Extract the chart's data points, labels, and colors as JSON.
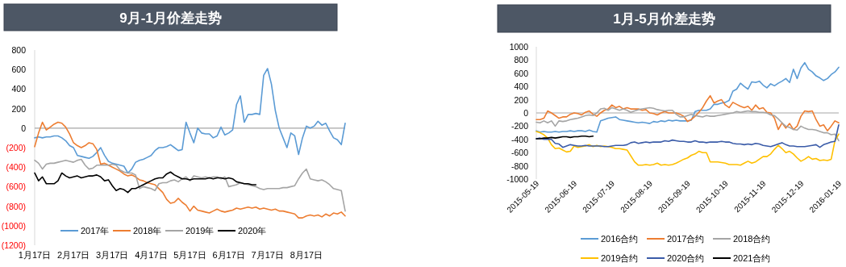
{
  "chart_data": [
    {
      "type": "line",
      "title": "9月-1月价差走势",
      "categories": [
        "1月17日",
        null,
        null,
        null,
        null,
        null,
        null,
        null,
        null,
        null,
        "2月17日",
        null,
        null,
        null,
        null,
        null,
        null,
        null,
        null,
        null,
        "3月17日",
        null,
        null,
        null,
        null,
        null,
        null,
        null,
        null,
        null,
        "4月17日",
        null,
        null,
        null,
        null,
        null,
        null,
        null,
        null,
        null,
        "5月17日",
        null,
        null,
        null,
        null,
        null,
        null,
        null,
        null,
        null,
        "6月17日",
        null,
        null,
        null,
        null,
        null,
        null,
        null,
        null,
        null,
        "7月17日",
        null,
        null,
        null,
        null,
        null,
        null,
        null,
        null,
        null,
        "8月17日",
        null,
        null,
        null,
        null,
        null,
        null,
        null,
        null,
        null,
        null
      ],
      "ylim": [
        -1200,
        800
      ],
      "yticks": [
        {
          "value": -1200,
          "label": "(1200)"
        },
        {
          "value": -1000,
          "label": "(1000)"
        },
        {
          "value": -800,
          "label": "(800)"
        },
        {
          "value": -600,
          "label": "(600)"
        },
        {
          "value": -400,
          "label": "(400)"
        },
        {
          "value": -200,
          "label": "(200)"
        },
        0,
        200,
        400,
        600,
        800
      ],
      "ref_lines": [
        {
          "axis": "y",
          "value": 0,
          "color": "#a6a6a6"
        }
      ],
      "legend": "bottom",
      "series": [
        {
          "name": "2017年",
          "color": "#5b9bd5",
          "values": [
            -100,
            -90,
            -100,
            -90,
            -90,
            -80,
            -80,
            -100,
            -130,
            -180,
            -200,
            -280,
            -290,
            -300,
            -310,
            -290,
            -250,
            -200,
            -280,
            -340,
            -360,
            -370,
            -380,
            -390,
            -460,
            -420,
            -350,
            -330,
            -320,
            -300,
            -280,
            -230,
            -200,
            -200,
            -190,
            -170,
            -200,
            -230,
            -220,
            60,
            -50,
            -150,
            0,
            -50,
            -60,
            -60,
            -100,
            -80,
            10,
            -70,
            -50,
            -20,
            240,
            330,
            60,
            140,
            140,
            150,
            140,
            540,
            610,
            450,
            180,
            0,
            -100,
            -200,
            -50,
            -80,
            -270,
            -100,
            20,
            0,
            20,
            70,
            30,
            50,
            -30,
            -100,
            -120,
            -170,
            50
          ]
        },
        {
          "name": "2018年",
          "color": "#ed7d31",
          "values": [
            -190,
            -50,
            60,
            -20,
            10,
            40,
            60,
            50,
            10,
            -60,
            -150,
            -180,
            -200,
            -180,
            -150,
            -160,
            -220,
            -370,
            -360,
            -380,
            -400,
            -420,
            -440,
            -470,
            -490,
            -480,
            -500,
            -530,
            -540,
            -560,
            -570,
            -580,
            -620,
            -660,
            -730,
            -770,
            -760,
            -720,
            -760,
            -790,
            -850,
            -800,
            -840,
            -850,
            -860,
            -870,
            -850,
            -830,
            -850,
            -860,
            -850,
            -840,
            -820,
            -830,
            -820,
            -810,
            -820,
            -810,
            -830,
            -820,
            -830,
            -840,
            -830,
            -850,
            -850,
            -860,
            -870,
            -880,
            -920,
            -920,
            -900,
            -890,
            -900,
            -890,
            -910,
            -880,
            -900,
            -870,
            -880,
            -860,
            -900
          ]
        },
        {
          "name": "2019年",
          "color": "#a5a5a5",
          "values": [
            -330,
            -360,
            -420,
            -370,
            -360,
            -360,
            -350,
            -340,
            -330,
            -340,
            -350,
            -330,
            -320,
            -380,
            -420,
            -410,
            -380,
            -380,
            -380,
            -380,
            -370,
            -380,
            -430,
            -450,
            -460,
            -460,
            -480,
            -620,
            -600,
            -610,
            -620,
            -640,
            -570,
            -560,
            -560,
            -540,
            -530,
            -550,
            -520,
            -500,
            -540,
            -490,
            -500,
            -510,
            -500,
            -510,
            -500,
            -500,
            -520,
            -500,
            -600,
            -590,
            -580,
            -560,
            -570,
            -580,
            -590,
            -600,
            -620,
            -630,
            -620,
            -620,
            -620,
            -620,
            -610,
            -610,
            -600,
            -590,
            -520,
            -460,
            -420,
            -520,
            -530,
            -540,
            -530,
            -550,
            -580,
            -620,
            -630,
            -640,
            -850
          ]
        },
        {
          "name": "2020年",
          "color": "#000000",
          "values": [
            -460,
            -540,
            -500,
            -570,
            -570,
            -570,
            -540,
            -460,
            -490,
            -510,
            -500,
            -490,
            -510,
            -500,
            -490,
            -490,
            -480,
            -500,
            -540,
            -530,
            -590,
            -640,
            -620,
            -630,
            -660,
            -620,
            -620,
            -600,
            -580,
            -560,
            -540,
            -520,
            -510,
            -510,
            -470,
            -450,
            -480,
            -500,
            -520,
            -520,
            -530,
            -520,
            -520,
            -520,
            -520,
            -510,
            -520,
            -510,
            -510,
            -520,
            -510,
            -520,
            -550,
            -560,
            -570,
            -570,
            -580,
            -580,
            null,
            null,
            null,
            null,
            null,
            null,
            null,
            null,
            null,
            null,
            null,
            null,
            null,
            null,
            null,
            null,
            null,
            null,
            null,
            null,
            null,
            null,
            null
          ]
        }
      ]
    },
    {
      "type": "line",
      "title": "1月-5月价差走势",
      "categories": [
        "2015-05-19",
        null,
        null,
        null,
        null,
        null,
        null,
        null,
        null,
        null,
        "2015-06-19",
        null,
        null,
        null,
        null,
        null,
        null,
        null,
        null,
        null,
        "2015-07-19",
        null,
        null,
        null,
        null,
        null,
        null,
        null,
        null,
        null,
        "2015-08-19",
        null,
        null,
        null,
        null,
        null,
        null,
        null,
        null,
        null,
        "2015-09-19",
        null,
        null,
        null,
        null,
        null,
        null,
        null,
        null,
        null,
        "2015-10-19",
        null,
        null,
        null,
        null,
        null,
        null,
        null,
        null,
        null,
        "2015-11-19",
        null,
        null,
        null,
        null,
        null,
        null,
        null,
        null,
        null,
        "2015-12-19",
        null,
        null,
        null,
        null,
        null,
        null,
        null,
        null,
        null,
        "2016-01-19"
      ],
      "ylim": [
        -1000,
        1000
      ],
      "yticks": [
        -1000,
        -800,
        -600,
        -400,
        -200,
        0,
        200,
        400,
        600,
        800,
        1000
      ],
      "ref_lines": [
        {
          "axis": "y",
          "value": 0,
          "color": "#a6a6a6"
        }
      ],
      "legend": "bottom",
      "series": [
        {
          "name": "2016合约",
          "color": "#5b9bd5",
          "values": [
            -270,
            -290,
            -280,
            -290,
            -290,
            -280,
            -290,
            -280,
            -280,
            -270,
            -280,
            -270,
            -270,
            -280,
            -260,
            -280,
            -290,
            -120,
            -100,
            -80,
            -70,
            -60,
            -100,
            -110,
            -120,
            -130,
            -140,
            -150,
            -140,
            -150,
            -160,
            -130,
            -140,
            -120,
            -130,
            -110,
            -120,
            -110,
            -120,
            -120,
            -120,
            -110,
            20,
            40,
            40,
            40,
            60,
            130,
            130,
            150,
            160,
            190,
            330,
            360,
            450,
            400,
            360,
            470,
            460,
            480,
            420,
            380,
            440,
            410,
            450,
            480,
            520,
            460,
            660,
            520,
            680,
            760,
            660,
            620,
            560,
            530,
            490,
            520,
            580,
            620,
            690
          ]
        },
        {
          "name": "2017合约",
          "color": "#ed7d31",
          "values": [
            -100,
            -100,
            -80,
            30,
            0,
            -40,
            -80,
            -60,
            -60,
            -20,
            0,
            -10,
            -30,
            10,
            30,
            -20,
            -50,
            0,
            40,
            60,
            120,
            80,
            100,
            60,
            80,
            60,
            60,
            60,
            40,
            50,
            0,
            -10,
            -30,
            0,
            20,
            0,
            0,
            0,
            -20,
            -50,
            -130,
            -100,
            -50,
            10,
            80,
            180,
            260,
            150,
            180,
            200,
            120,
            80,
            160,
            130,
            100,
            80,
            100,
            40,
            120,
            60,
            80,
            10,
            0,
            -80,
            -250,
            -150,
            -230,
            -160,
            -250,
            -200,
            -50,
            30,
            20,
            30,
            -100,
            -200,
            -180,
            -270,
            -200,
            -120,
            -150
          ]
        },
        {
          "name": "2018合约",
          "color": "#a5a5a5",
          "values": [
            -140,
            -150,
            -120,
            -150,
            -120,
            -200,
            -120,
            -130,
            -120,
            -100,
            -90,
            -80,
            -60,
            -40,
            -30,
            -40,
            0,
            60,
            70,
            40,
            80,
            60,
            40,
            60,
            40,
            10,
            30,
            50,
            60,
            70,
            80,
            70,
            50,
            40,
            30,
            40,
            40,
            -20,
            -60,
            -60,
            -40,
            -20,
            -40,
            -50,
            -60,
            -40,
            -50,
            -50,
            -40,
            -30,
            -20,
            -10,
            0,
            20,
            10,
            20,
            30,
            20,
            20,
            10,
            10,
            0,
            -30,
            -40,
            -90,
            -150,
            -200,
            -220,
            -250,
            -260,
            -200,
            -230,
            -250,
            -250,
            -260,
            -280,
            -300,
            -300,
            -330,
            -320,
            -420
          ]
        },
        {
          "name": "2019合约",
          "color": "#ffc000",
          "values": [
            -280,
            -300,
            -330,
            -380,
            -480,
            -540,
            -530,
            -560,
            -590,
            -580,
            -500,
            -520,
            -510,
            -500,
            -480,
            -510,
            -490,
            -510,
            -500,
            -510,
            -520,
            -540,
            -540,
            -550,
            -560,
            -650,
            -740,
            -790,
            -790,
            -780,
            -790,
            -780,
            -760,
            -790,
            -780,
            -790,
            -780,
            -760,
            -730,
            -700,
            -680,
            -640,
            -620,
            -580,
            -600,
            -600,
            -740,
            -740,
            -740,
            -750,
            -760,
            -780,
            -780,
            -780,
            -790,
            -760,
            -730,
            -760,
            -740,
            -700,
            -660,
            -660,
            -620,
            -550,
            -490,
            -540,
            -600,
            -580,
            -620,
            -680,
            -730,
            -700,
            -660,
            -700,
            -690,
            -720,
            -710,
            -720,
            -700,
            -420,
            -320
          ]
        },
        {
          "name": "2020合约",
          "color": "#3a5ba8",
          "values": [
            -390,
            -380,
            -400,
            -400,
            -400,
            -460,
            -470,
            -520,
            -500,
            -480,
            -490,
            -500,
            -500,
            -490,
            -500,
            -500,
            -500,
            -500,
            -510,
            -510,
            -500,
            -490,
            -490,
            -490,
            -480,
            -450,
            -440,
            -460,
            -450,
            -440,
            -450,
            -440,
            -440,
            -440,
            -420,
            -430,
            -410,
            -420,
            -430,
            -430,
            -440,
            -440,
            -420,
            -440,
            -440,
            -450,
            -440,
            -440,
            -440,
            -430,
            -440,
            -440,
            -460,
            -470,
            -470,
            -480,
            -470,
            -480,
            -460,
            -470,
            -490,
            -500,
            -510,
            -490,
            -470,
            -450,
            -480,
            -500,
            -500,
            -510,
            -510,
            -510,
            -500,
            -490,
            -480,
            -520,
            -480,
            -460,
            -440,
            -430,
            -180
          ]
        },
        {
          "name": "2021合约",
          "color": "#000000",
          "values": [
            -390,
            -390,
            -380,
            -380,
            -370,
            -380,
            -370,
            -360,
            -360,
            -370,
            -360,
            -360,
            -350,
            -350,
            -360,
            -350,
            null,
            null,
            null,
            null,
            null,
            null,
            null,
            null,
            null,
            null,
            null,
            null,
            null,
            null,
            null,
            null,
            null,
            null,
            null,
            null,
            null,
            null,
            null,
            null,
            null,
            null,
            null,
            null,
            null,
            null,
            null,
            null,
            null,
            null,
            null,
            null,
            null,
            null,
            null,
            null,
            null,
            null,
            null,
            null,
            null,
            null,
            null,
            null,
            null,
            null,
            null,
            null,
            null,
            null,
            null,
            null,
            null,
            null,
            null,
            null,
            null,
            null,
            null,
            null,
            null
          ]
        }
      ]
    }
  ]
}
